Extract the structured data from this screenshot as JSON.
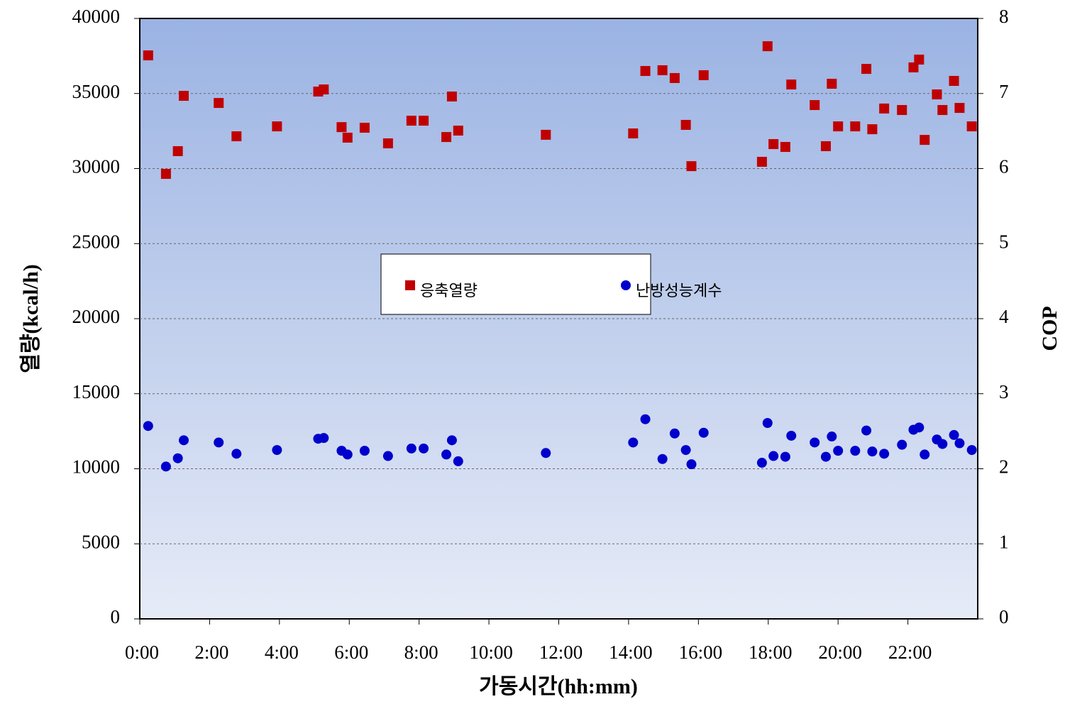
{
  "chart_data": {
    "type": "scatter",
    "xlabel": "가동시간(hh:mm)",
    "ylabel": "열량(kcal/h)",
    "y2label": "COP",
    "xlim": [
      0,
      24
    ],
    "xticks": [
      {
        "value": 0,
        "label": "0:00"
      },
      {
        "value": 2,
        "label": "2:00"
      },
      {
        "value": 4,
        "label": "4:00"
      },
      {
        "value": 6,
        "label": "6:00"
      },
      {
        "value": 8,
        "label": "8:00"
      },
      {
        "value": 10,
        "label": "10:00"
      },
      {
        "value": 12,
        "label": "12:00"
      },
      {
        "value": 14,
        "label": "14:00"
      },
      {
        "value": 16,
        "label": "16:00"
      },
      {
        "value": 18,
        "label": "18:00"
      },
      {
        "value": 20,
        "label": "20:00"
      },
      {
        "value": 22,
        "label": "22:00"
      }
    ],
    "ylim": [
      0,
      40000
    ],
    "yticks": [
      0,
      5000,
      10000,
      15000,
      20000,
      25000,
      30000,
      35000,
      40000
    ],
    "y2lim": [
      0,
      8
    ],
    "y2ticks": [
      0,
      1,
      2,
      3,
      4,
      5,
      6,
      7,
      8
    ],
    "grid": true,
    "x": [
      0.24,
      0.75,
      1.09,
      1.26,
      2.26,
      2.77,
      3.93,
      5.11,
      5.27,
      5.78,
      5.95,
      6.44,
      7.11,
      7.78,
      8.13,
      8.78,
      8.94,
      9.12,
      11.63,
      14.13,
      14.48,
      14.97,
      15.32,
      15.64,
      15.8,
      16.15,
      17.82,
      17.98,
      18.15,
      18.49,
      18.66,
      19.33,
      19.65,
      19.82,
      20.0,
      20.49,
      20.81,
      20.98,
      21.32,
      21.83,
      22.16,
      22.32,
      22.48,
      22.83,
      22.99,
      23.32,
      23.48,
      23.83
    ],
    "series": [
      {
        "name": "응축열량",
        "color": "#c00000",
        "marker": "square",
        "values": [
          37540,
          29645,
          31160,
          34845,
          34370,
          32150,
          32810,
          35130,
          35270,
          32760,
          32060,
          32720,
          31680,
          33190,
          33190,
          32100,
          34800,
          32530,
          32250,
          32340,
          36500,
          36550,
          36030,
          32910,
          30160,
          36220,
          30450,
          38150,
          31630,
          31440,
          35600,
          34230,
          31490,
          35650,
          32810,
          32810,
          36640,
          32620,
          34000,
          33900,
          36740,
          37260,
          31910,
          34940,
          33900,
          35840,
          34040,
          32810
        ]
      },
      {
        "name": "난방성능계수",
        "color": "#0000cc",
        "marker": "circle",
        "axis": "y2",
        "values": [
          2.57,
          2.03,
          2.14,
          2.38,
          2.35,
          2.2,
          2.25,
          2.4,
          2.41,
          2.24,
          2.19,
          2.24,
          2.17,
          2.27,
          2.27,
          2.19,
          2.38,
          2.1,
          2.21,
          2.35,
          2.66,
          2.13,
          2.47,
          2.25,
          2.06,
          2.48,
          2.08,
          2.61,
          2.17,
          2.16,
          2.44,
          2.35,
          2.16,
          2.43,
          2.24,
          2.24,
          2.51,
          2.23,
          2.2,
          2.32,
          2.52,
          2.55,
          2.19,
          2.39,
          2.33,
          2.45,
          2.34,
          2.25
        ]
      }
    ]
  }
}
